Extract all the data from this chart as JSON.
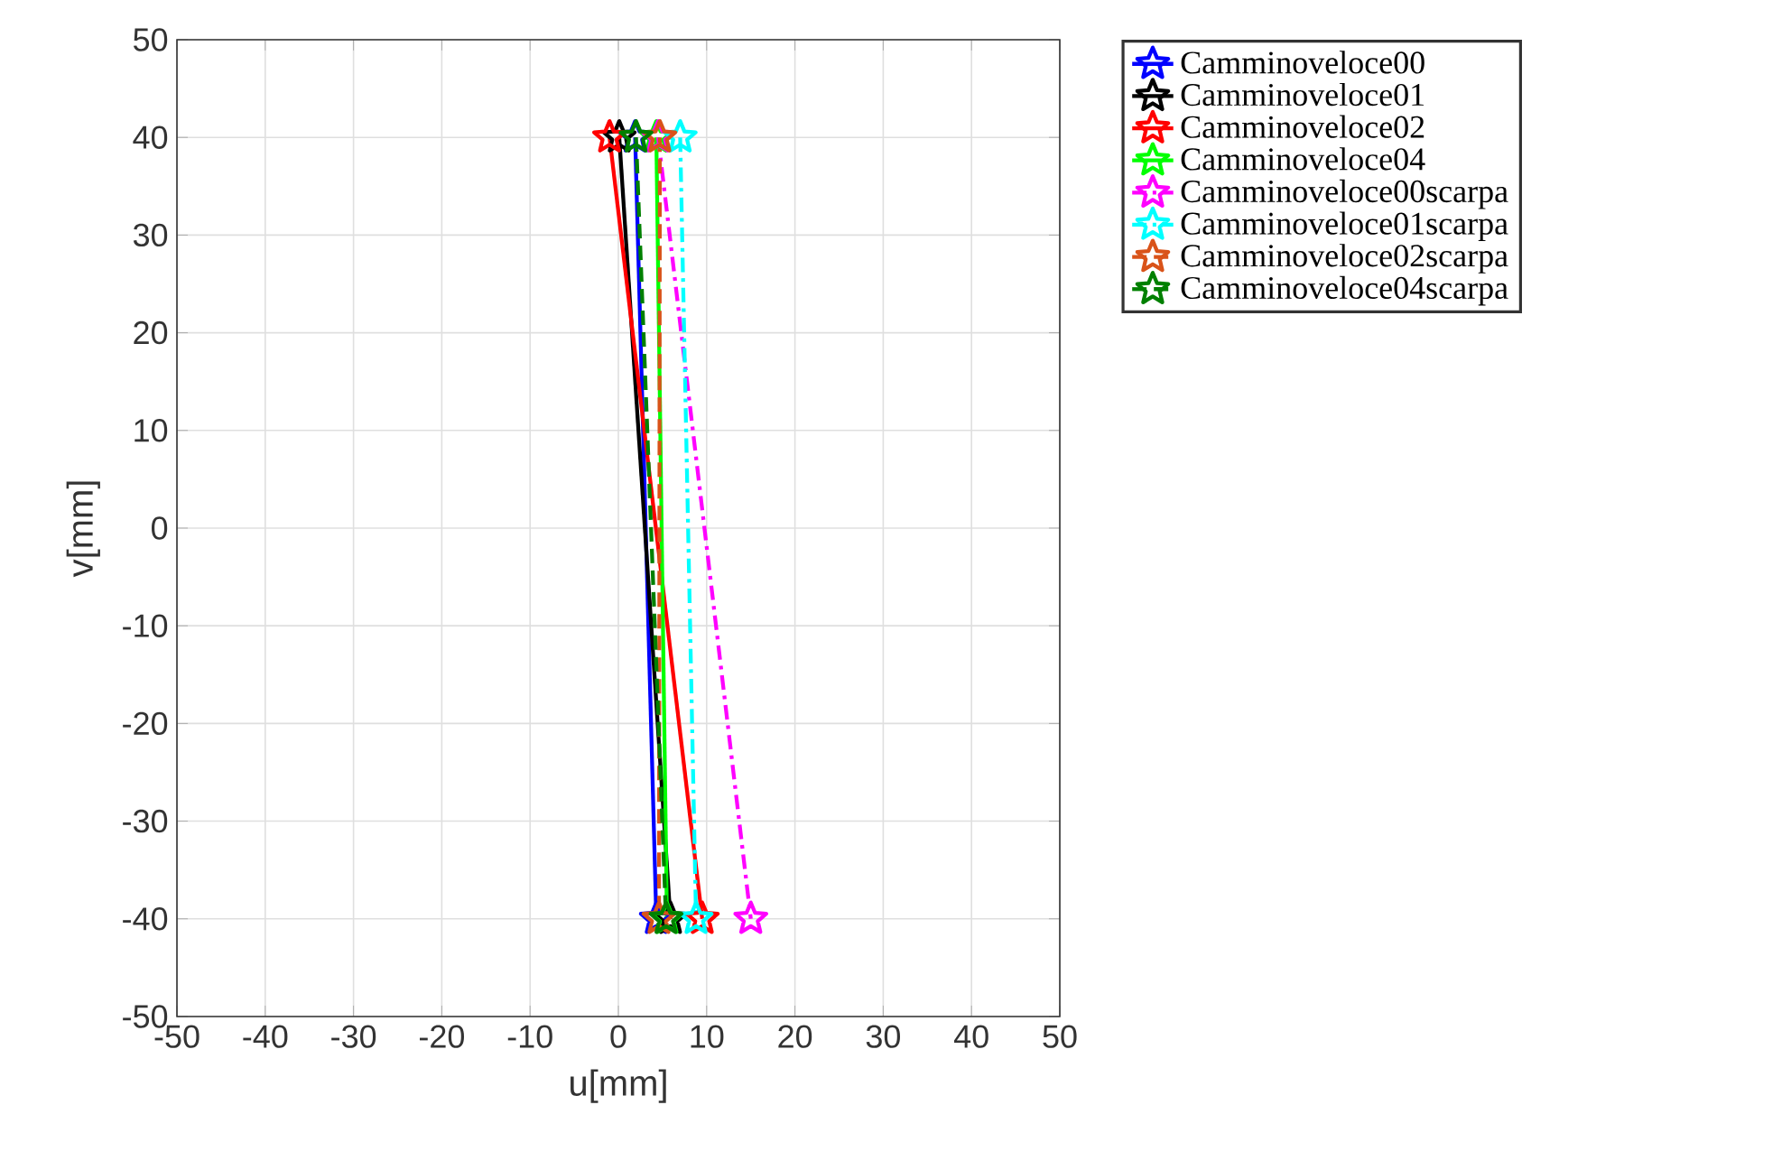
{
  "chart_data": {
    "type": "line",
    "xlabel": "u[mm]",
    "ylabel": "v[mm]",
    "xlim": [
      -50,
      50
    ],
    "ylim": [
      -50,
      50
    ],
    "xticks": [
      -50,
      -40,
      -30,
      -20,
      -10,
      0,
      10,
      20,
      30,
      40,
      50
    ],
    "yticks": [
      -50,
      -40,
      -30,
      -20,
      -10,
      0,
      10,
      20,
      30,
      40,
      50
    ],
    "grid": true,
    "legend": "top right",
    "marker": "star",
    "series": [
      {
        "name": "Camminoveloce00",
        "color": "#0000ff",
        "line_style": "solid",
        "x": [
          1.9,
          4.3
        ],
        "values": [
          40,
          -40
        ]
      },
      {
        "name": "Camminoveloce01",
        "color": "#000000",
        "line_style": "solid",
        "x": [
          0.1,
          5.9
        ],
        "values": [
          40,
          -40
        ]
      },
      {
        "name": "Camminoveloce02",
        "color": "#ff0000",
        "line_style": "solid",
        "x": [
          -1,
          9.5
        ],
        "values": [
          40,
          -40
        ]
      },
      {
        "name": "Camminoveloce04",
        "color": "#00ff00",
        "line_style": "solid",
        "x": [
          4.3,
          5.5
        ],
        "values": [
          40,
          -40
        ]
      },
      {
        "name": "Camminoveloce00scarpa",
        "color": "#ff00ff",
        "line_style": "dashdot",
        "x": [
          4.5,
          15
        ],
        "values": [
          40,
          -40
        ]
      },
      {
        "name": "Camminoveloce01scarpa",
        "color": "#00ffff",
        "line_style": "dashdot",
        "x": [
          7,
          8.8
        ],
        "values": [
          40,
          -40
        ]
      },
      {
        "name": "Camminoveloce02scarpa",
        "color": "#d95319",
        "line_style": "dashed",
        "x": [
          4.7,
          4.6
        ],
        "values": [
          40,
          -40
        ]
      },
      {
        "name": "Camminoveloce04scarpa",
        "color": "#008000",
        "line_style": "dashed",
        "x": [
          2,
          5.4
        ],
        "values": [
          40,
          -40
        ]
      }
    ]
  }
}
